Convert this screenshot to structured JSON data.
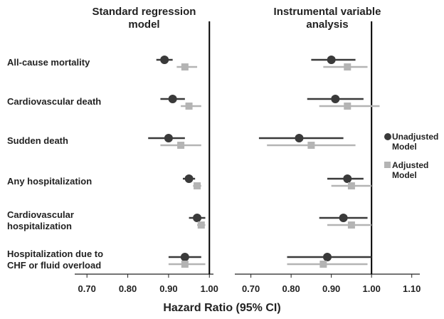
{
  "chart_data": [
    {
      "type": "forest",
      "title": "Standard regression model",
      "xlabel": "Hazard Ratio (95% CI)",
      "categories": [
        "All-cause mortality",
        "Cardiovascular death",
        "Sudden death",
        "Any hospitalization",
        "Cardiovascular hospitalization",
        "Hospitalization due to CHF or fluid overload"
      ],
      "xlim": [
        0.67,
        1.01
      ],
      "xticks": [
        {
          "value": 0.7,
          "label": "0.70"
        },
        {
          "value": 0.8,
          "label": "0.80"
        },
        {
          "value": 0.9,
          "label": "0.90"
        },
        {
          "value": 1.0,
          "label": "1.00"
        }
      ],
      "refline": 1.0,
      "series": [
        {
          "name": "Unadjusted Model",
          "color": "#3a3a3a",
          "marker": "circle",
          "values": [
            0.89,
            0.91,
            0.9,
            0.95,
            0.97,
            0.94
          ],
          "lower": [
            0.87,
            0.88,
            0.85,
            0.935,
            0.95,
            0.9
          ],
          "upper": [
            0.91,
            0.94,
            0.94,
            0.965,
            0.99,
            0.98
          ]
        },
        {
          "name": "Adjusted Model",
          "color": "#b4b4b4",
          "marker": "square",
          "values": [
            0.94,
            0.95,
            0.93,
            0.97,
            0.98,
            0.94
          ],
          "lower": [
            0.92,
            0.93,
            0.88,
            0.96,
            0.97,
            0.9
          ],
          "upper": [
            0.97,
            0.98,
            0.98,
            0.98,
            0.99,
            0.99
          ]
        }
      ]
    },
    {
      "type": "forest",
      "title": "Instrumental variable analysis",
      "xlim": [
        0.66,
        1.12
      ],
      "xticks": [
        {
          "value": 0.7,
          "label": "0.70"
        },
        {
          "value": 0.8,
          "label": "0.80"
        },
        {
          "value": 0.9,
          "label": "0.90"
        },
        {
          "value": 1.0,
          "label": "1.00"
        },
        {
          "value": 1.1,
          "label": "1.10"
        }
      ],
      "refline": 1.0,
      "legend": "right",
      "series": [
        {
          "name": "Unadjusted Model",
          "color": "#3a3a3a",
          "marker": "circle",
          "values": [
            0.9,
            0.91,
            0.82,
            0.94,
            0.93,
            0.89
          ],
          "lower": [
            0.85,
            0.84,
            0.72,
            0.89,
            0.87,
            0.79
          ],
          "upper": [
            0.96,
            0.98,
            0.93,
            0.98,
            0.99,
            1.0
          ]
        },
        {
          "name": "Adjusted Model",
          "color": "#b4b4b4",
          "marker": "square",
          "values": [
            0.94,
            0.94,
            0.85,
            0.95,
            0.95,
            0.88
          ],
          "lower": [
            0.88,
            0.87,
            0.74,
            0.9,
            0.89,
            0.79
          ],
          "upper": [
            0.99,
            1.02,
            0.96,
            1.0,
            1.0,
            0.99
          ]
        }
      ]
    }
  ]
}
